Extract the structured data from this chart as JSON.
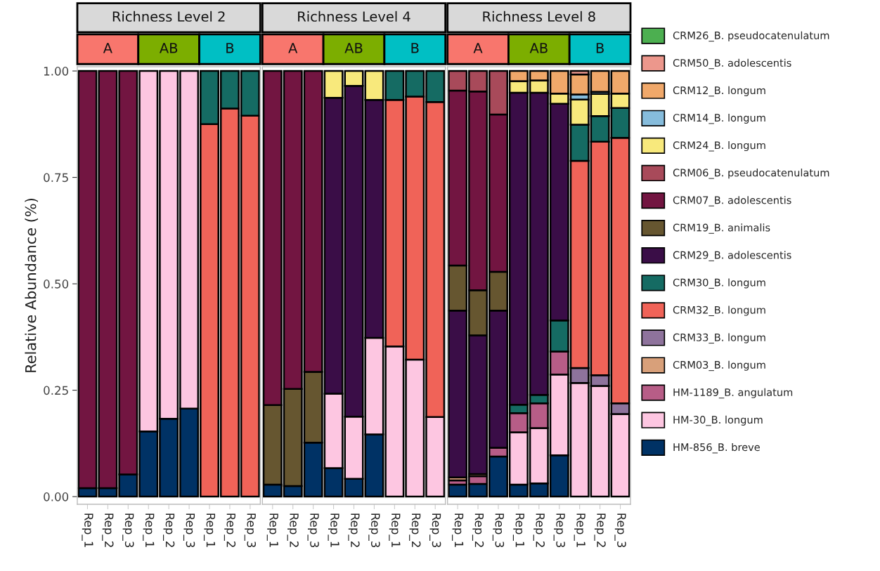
{
  "chart_data": [
    {
      "type": "bar",
      "stacked": true,
      "title": "Richness Level 2",
      "ylabel": "Relative Abundance (%)",
      "annotations": [
        "A",
        "AB",
        "B"
      ],
      "categories": [
        "Rep_1",
        "Rep_2",
        "Rep_3",
        "Rep_1",
        "Rep_2",
        "Rep_3",
        "Rep_1",
        "Rep_2",
        "Rep_3"
      ],
      "ylim": [
        -0.018,
        1.01
      ],
      "yticks": [
        {
          "value": 0,
          "label": "0.00"
        },
        {
          "value": 0.25,
          "label": "0.25"
        },
        {
          "value": 0.5,
          "label": "0.50"
        },
        {
          "value": 0.75,
          "label": "0.75"
        },
        {
          "value": 1,
          "label": "1.00"
        }
      ],
      "series": [
        {
          "color": "#003265",
          "values": [
            0.02,
            0.02,
            0.052,
            0.153,
            0.183,
            0.207,
            null,
            null,
            null
          ]
        },
        {
          "color": "#fdc6e1",
          "values": [
            null,
            null,
            null,
            0.847,
            0.817,
            0.793,
            null,
            null,
            null
          ]
        },
        {
          "color": "#f06358",
          "values": [
            null,
            null,
            null,
            null,
            null,
            null,
            0.875,
            0.912,
            0.895
          ]
        },
        {
          "color": "#156b63",
          "values": [
            null,
            null,
            null,
            null,
            null,
            null,
            0.125,
            0.088,
            0.105
          ]
        },
        {
          "color": "#721541",
          "values": [
            0.98,
            0.98,
            0.948,
            null,
            null,
            null,
            null,
            null,
            null
          ]
        }
      ]
    },
    {
      "type": "bar",
      "stacked": true,
      "title": "Richness Level 4",
      "annotations": [
        "A",
        "AB",
        "B"
      ],
      "tick_labels": "x",
      "categories": [
        "Rep_1",
        "Rep_2",
        "Rep_3",
        "Rep_1",
        "Rep_2",
        "Rep_3",
        "Rep_1",
        "Rep_2",
        "Rep_3"
      ],
      "ylim": [
        -0.018,
        1.01
      ],
      "series": [
        {
          "color": "#003265",
          "values": [
            0.028,
            0.025,
            0.127,
            0.067,
            0.042,
            0.146,
            null,
            null,
            null
          ]
        },
        {
          "color": "#fdc6e1",
          "values": [
            null,
            null,
            null,
            0.175,
            0.146,
            0.227,
            0.353,
            0.322,
            0.187
          ]
        },
        {
          "color": "#f06358",
          "values": [
            null,
            null,
            null,
            null,
            null,
            null,
            0.579,
            0.618,
            0.74
          ]
        },
        {
          "color": "#156b63",
          "values": [
            null,
            null,
            null,
            null,
            null,
            null,
            0.068,
            0.06,
            0.073
          ]
        },
        {
          "color": "#3a0d47",
          "values": [
            null,
            null,
            null,
            0.695,
            0.777,
            0.559,
            null,
            null,
            null
          ]
        },
        {
          "color": "#665630",
          "values": [
            0.187,
            0.228,
            0.166,
            null,
            null,
            null,
            null,
            null,
            null
          ]
        },
        {
          "color": "#721541",
          "values": [
            0.785,
            0.747,
            0.707,
            null,
            null,
            null,
            null,
            null,
            null
          ]
        },
        {
          "color": "#f8e97c",
          "values": [
            null,
            null,
            null,
            0.063,
            0.035,
            0.068,
            null,
            null,
            null
          ]
        }
      ]
    },
    {
      "type": "bar",
      "stacked": true,
      "title": "Richness Level 8",
      "annotations": [
        "A",
        "AB",
        "B"
      ],
      "tick_labels": "x",
      "legend": "right",
      "categories": [
        "Rep_1",
        "Rep_2",
        "Rep_3",
        "Rep_1",
        "Rep_2",
        "Rep_3",
        "Rep_1",
        "Rep_2",
        "Rep_3"
      ],
      "ylim": [
        -0.018,
        1.01
      ],
      "series": [
        {
          "name": "HM-856_B. breve",
          "color": "#003265",
          "values": [
            0.028,
            0.03,
            0.094,
            0.028,
            0.031,
            0.097,
            null,
            null,
            null
          ]
        },
        {
          "name": "HM-30_B. longum",
          "color": "#fdc6e1",
          "values": [
            null,
            null,
            null,
            0.123,
            0.13,
            0.19,
            0.267,
            0.26,
            0.194
          ]
        },
        {
          "name": "HM-1189_B. angulatum",
          "color": "#b75d87",
          "values": [
            0.01,
            0.018,
            0.021,
            0.045,
            0.058,
            0.054,
            null,
            null,
            null
          ]
        },
        {
          "name": "CRM03_B. longum",
          "color": "#d8a07a",
          "values": [
            0.007,
            0.005,
            null,
            null,
            null,
            null,
            null,
            null,
            null
          ]
        },
        {
          "name": "CRM33_B. longum",
          "color": "#8e739c",
          "values": [
            null,
            null,
            null,
            null,
            null,
            null,
            0.035,
            0.025,
            0.025
          ]
        },
        {
          "name": "CRM32_B. longum",
          "color": "#f06358",
          "values": [
            null,
            null,
            null,
            null,
            null,
            null,
            0.487,
            0.549,
            0.624
          ]
        },
        {
          "name": "CRM30_B. longum",
          "color": "#156b63",
          "values": [
            null,
            null,
            null,
            0.02,
            0.02,
            0.073,
            0.085,
            0.06,
            0.07
          ]
        },
        {
          "name": "CRM29_B. adolescentis",
          "color": "#3a0d47",
          "values": [
            0.392,
            0.326,
            0.322,
            0.733,
            0.71,
            0.509,
            null,
            null,
            null
          ]
        },
        {
          "name": "CRM19_B. animalis",
          "color": "#665630",
          "values": [
            0.106,
            0.106,
            0.091,
            null,
            null,
            null,
            null,
            null,
            null
          ]
        },
        {
          "name": "CRM07_B. adolescentis",
          "color": "#721541",
          "values": [
            0.411,
            0.467,
            0.37,
            null,
            null,
            null,
            null,
            null,
            null
          ]
        },
        {
          "name": "CRM06_B. pseudocatenulatum",
          "color": "#a84a5a",
          "values": [
            0.046,
            0.048,
            0.102,
            null,
            null,
            null,
            null,
            null,
            null
          ]
        },
        {
          "name": "CRM24_B. longum",
          "color": "#f8e97c",
          "values": [
            null,
            null,
            null,
            0.027,
            0.029,
            0.024,
            0.059,
            0.052,
            0.034
          ]
        },
        {
          "name": "CRM14_B. longum",
          "color": "#86bcdc",
          "values": [
            null,
            null,
            null,
            null,
            null,
            null,
            0.012,
            0.005,
            null
          ]
        },
        {
          "name": "CRM12_B. longum",
          "color": "#f0a86a",
          "values": [
            null,
            null,
            null,
            0.024,
            0.022,
            0.053,
            0.047,
            0.049,
            0.053
          ]
        },
        {
          "name": "CRM50_B. adolescentis",
          "color": "#ec978c",
          "values": [
            null,
            null,
            null,
            null,
            null,
            null,
            0.008,
            null,
            null
          ]
        },
        {
          "name": "CRM26_B. pseudocatenulatum",
          "color": "#4caf50",
          "values": [
            null,
            null,
            null,
            null,
            null,
            null,
            null,
            null,
            null
          ]
        }
      ]
    }
  ]
}
